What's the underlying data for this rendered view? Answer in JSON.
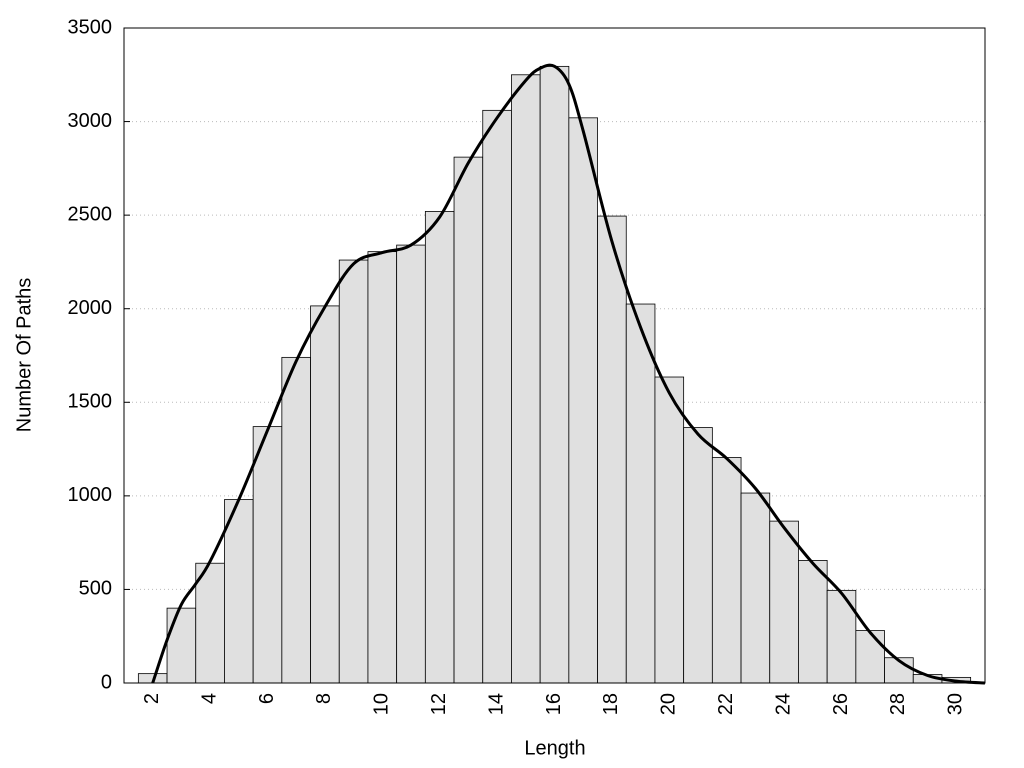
{
  "chart_data": {
    "type": "histogram",
    "xlabel": "Length",
    "ylabel": "Number Of Paths",
    "bins": [
      1.5,
      2.5,
      3.5,
      4.5,
      5.5,
      6.5,
      7.5,
      8.5,
      9.5,
      10.5,
      11.5,
      12.5,
      13.5,
      14.5,
      15.5,
      16.5,
      17.5,
      18.5,
      19.5,
      20.5,
      21.5,
      22.5,
      23.5,
      24.5,
      25.5,
      26.5,
      27.5,
      28.5,
      29.5,
      30.5
    ],
    "values": [
      50,
      400,
      640,
      980,
      1370,
      1740,
      2015,
      2260,
      2305,
      2340,
      2520,
      2810,
      3060,
      3250,
      3295,
      3020,
      2495,
      2025,
      1635,
      1365,
      1205,
      1015,
      865,
      655,
      495,
      280,
      135,
      45,
      30
    ],
    "color": "#e0e0e0",
    "curve": {
      "x": [
        2,
        2.5,
        3,
        3.5,
        4,
        5,
        6,
        7,
        8,
        9,
        10,
        11,
        12,
        13,
        14,
        15,
        15.5,
        16,
        16.5,
        17,
        18,
        19,
        20,
        21,
        22,
        23,
        24,
        25,
        26,
        27,
        28,
        29,
        30,
        31
      ],
      "values": [
        0,
        230,
        420,
        530,
        650,
        980,
        1350,
        1720,
        2010,
        2240,
        2300,
        2340,
        2490,
        2780,
        3020,
        3220,
        3285,
        3295,
        3200,
        2950,
        2360,
        1900,
        1550,
        1330,
        1200,
        1040,
        830,
        640,
        480,
        270,
        120,
        40,
        10,
        0
      ],
      "color": "#000000"
    },
    "xlim": [
      1,
      31
    ],
    "ylim": [
      0,
      3500
    ],
    "xticks": [
      2,
      4,
      6,
      8,
      10,
      12,
      14,
      16,
      18,
      20,
      22,
      24,
      26,
      28,
      30
    ],
    "yticks": [
      0,
      500,
      1000,
      1500,
      2000,
      2500,
      3000,
      3500
    ],
    "grid": true
  }
}
